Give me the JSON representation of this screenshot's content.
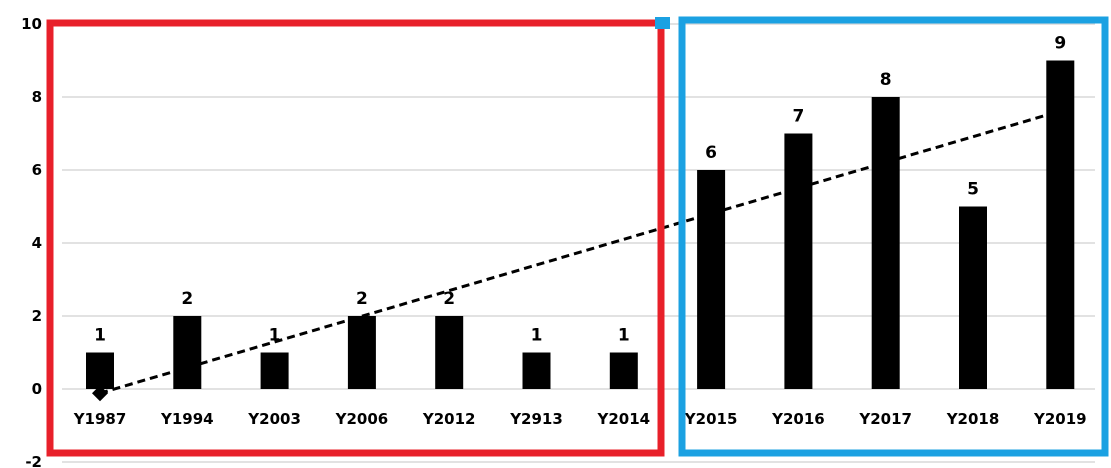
{
  "chart_data": {
    "type": "bar",
    "title": "",
    "xlabel": "",
    "ylabel": "",
    "ylim": [
      -2,
      10
    ],
    "yticks": [
      "-2",
      "0",
      "2",
      "4",
      "6",
      "8",
      "10"
    ],
    "grid": true,
    "trendline": {
      "type": "linear",
      "style": "dashed"
    },
    "categories": [
      "Y1987",
      "Y1994",
      "Y2003",
      "Y2006",
      "Y2012",
      "Y2913",
      "Y2014",
      "Y2015",
      "Y2016",
      "Y2017",
      "Y2018",
      "Y2019"
    ],
    "values": [
      1,
      2,
      1,
      2,
      2,
      1,
      1,
      6,
      7,
      8,
      5,
      9
    ],
    "data_labels": [
      "1",
      "2",
      "1",
      "2",
      "2",
      "1",
      "1",
      "6",
      "7",
      "8",
      "5",
      "9"
    ],
    "highlight_boxes": [
      {
        "color": "#e8202a",
        "categories": [
          "Y1987",
          "Y1994",
          "Y2003",
          "Y2006",
          "Y2012",
          "Y2913",
          "Y2014"
        ]
      },
      {
        "color": "#1ba1e2",
        "categories": [
          "Y2015",
          "Y2016",
          "Y2017",
          "Y2018",
          "Y2019"
        ]
      }
    ],
    "bar_color": "#000000",
    "grid_color": "#d9d9d9"
  }
}
